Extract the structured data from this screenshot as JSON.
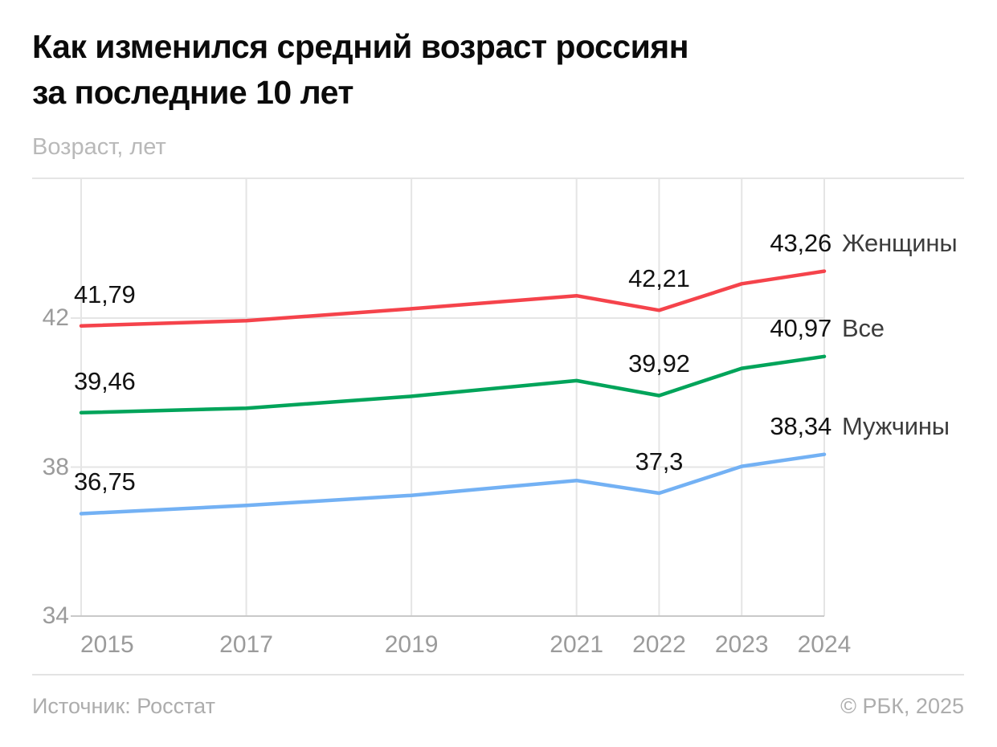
{
  "header": {
    "title_line1": "Как изменился средний возраст россиян",
    "title_line2": "за последние 10 лет",
    "subtitle": "Возраст, лет"
  },
  "footer": {
    "source": "Источник: Росстат",
    "copyright": "© РБК, 2025"
  },
  "colors": {
    "women_line": "#F5434B",
    "all_line": "#00A45A",
    "men_line": "#73B1F4",
    "gridline": "#E5E5E5",
    "axis_line": "#C9C9C9",
    "tick_text": "#9B9B9B",
    "value_text": "#121212",
    "series_name_text": "#3C3C3C"
  },
  "chart_data": {
    "type": "line",
    "title": "Как изменился средний возраст россиян за последние 10 лет",
    "subtitle": "Возраст, лет",
    "ylabel": "Возраст, лет",
    "xlabel": "",
    "grid": true,
    "legend_position": "inline-right",
    "xlim": [
      2015,
      2024
    ],
    "ylim": [
      34,
      45.75
    ],
    "x": [
      2015,
      2017,
      2019,
      2021,
      2022,
      2023,
      2024
    ],
    "x_ticks": [
      {
        "value": 2015,
        "label": "2015"
      },
      {
        "value": 2017,
        "label": "2017"
      },
      {
        "value": 2019,
        "label": "2019"
      },
      {
        "value": 2021,
        "label": "2021"
      },
      {
        "value": 2022,
        "label": "2022"
      },
      {
        "value": 2023,
        "label": "2023"
      },
      {
        "value": 2024,
        "label": "2024"
      }
    ],
    "y_ticks": [
      {
        "value": 42,
        "label": "42"
      },
      {
        "value": 38,
        "label": "38"
      },
      {
        "value": 34,
        "label": "34"
      }
    ],
    "series": [
      {
        "key": "women",
        "name": "Женщины",
        "color": "#F5434B",
        "values": [
          41.79,
          41.93,
          42.25,
          42.6,
          42.21,
          42.92,
          43.26
        ],
        "labels": [
          {
            "x": 2015,
            "text": "41,79",
            "pos": "start"
          },
          {
            "x": 2022,
            "text": "42,21",
            "pos": "dip"
          },
          {
            "x": 2024,
            "text": "43,26",
            "pos": "end"
          }
        ]
      },
      {
        "key": "all",
        "name": "Все",
        "color": "#00A45A",
        "values": [
          39.46,
          39.58,
          39.9,
          40.32,
          39.92,
          40.65,
          40.97
        ],
        "labels": [
          {
            "x": 2015,
            "text": "39,46",
            "pos": "start"
          },
          {
            "x": 2022,
            "text": "39,92",
            "pos": "dip"
          },
          {
            "x": 2024,
            "text": "40,97",
            "pos": "end"
          }
        ]
      },
      {
        "key": "men",
        "name": "Мужчины",
        "color": "#73B1F4",
        "values": [
          36.75,
          36.97,
          37.24,
          37.64,
          37.3,
          38.02,
          38.34
        ],
        "labels": [
          {
            "x": 2015,
            "text": "36,75",
            "pos": "start"
          },
          {
            "x": 2022,
            "text": "37,3",
            "pos": "dip"
          },
          {
            "x": 2024,
            "text": "38,34",
            "pos": "end"
          }
        ]
      }
    ]
  }
}
